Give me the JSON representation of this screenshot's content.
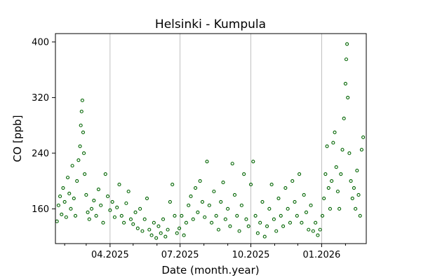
{
  "chart_data": {
    "type": "scatter",
    "title": "Helsinki - Kumpula",
    "xlabel": "Date (month.year)",
    "ylabel": "CO [ppb]",
    "xlim": [
      "2025-01-20",
      "2026-02-28"
    ],
    "ylim": [
      110,
      412
    ],
    "x_ticks": [
      {
        "date": "2025-04-01",
        "label": "04.2025"
      },
      {
        "date": "2025-07-01",
        "label": "07.2025"
      },
      {
        "date": "2025-10-01",
        "label": "10.2025"
      },
      {
        "date": "2026-01-01",
        "label": "01.2026"
      }
    ],
    "x_minor_ticks": [
      "2025-02-01",
      "2025-03-01",
      "2025-05-01",
      "2025-06-01",
      "2025-08-01",
      "2025-09-01",
      "2025-11-01",
      "2025-12-01",
      "2026-02-01"
    ],
    "y_ticks": [
      160,
      240,
      320,
      400
    ],
    "grid": "vertical at major x ticks",
    "marker_color": "#006400",
    "series": [
      {
        "points": [
          [
            "2025-01-22",
            142
          ],
          [
            "2025-01-24",
            165
          ],
          [
            "2025-01-26",
            178
          ],
          [
            "2025-01-28",
            152
          ],
          [
            "2025-01-30",
            190
          ],
          [
            "2025-02-01",
            170
          ],
          [
            "2025-02-03",
            148
          ],
          [
            "2025-02-05",
            205
          ],
          [
            "2025-02-07",
            182
          ],
          [
            "2025-02-09",
            160
          ],
          [
            "2025-02-11",
            222
          ],
          [
            "2025-02-13",
            175
          ],
          [
            "2025-02-15",
            150
          ],
          [
            "2025-02-17",
            200
          ],
          [
            "2025-02-19",
            230
          ],
          [
            "2025-02-21",
            250
          ],
          [
            "2025-02-22",
            280
          ],
          [
            "2025-02-23",
            300
          ],
          [
            "2025-02-24",
            316
          ],
          [
            "2025-02-25",
            270
          ],
          [
            "2025-02-26",
            240
          ],
          [
            "2025-02-27",
            210
          ],
          [
            "2025-03-01",
            180
          ],
          [
            "2025-03-03",
            155
          ],
          [
            "2025-03-05",
            145
          ],
          [
            "2025-03-08",
            160
          ],
          [
            "2025-03-11",
            172
          ],
          [
            "2025-03-14",
            150
          ],
          [
            "2025-03-17",
            188
          ],
          [
            "2025-03-20",
            165
          ],
          [
            "2025-03-23",
            140
          ],
          [
            "2025-03-26",
            210
          ],
          [
            "2025-03-29",
            178
          ],
          [
            "2025-04-01",
            158
          ],
          [
            "2025-04-04",
            170
          ],
          [
            "2025-04-07",
            148
          ],
          [
            "2025-04-10",
            162
          ],
          [
            "2025-04-13",
            195
          ],
          [
            "2025-04-16",
            150
          ],
          [
            "2025-04-19",
            140
          ],
          [
            "2025-04-22",
            168
          ],
          [
            "2025-04-25",
            185
          ],
          [
            "2025-04-28",
            145
          ],
          [
            "2025-05-01",
            138
          ],
          [
            "2025-05-04",
            155
          ],
          [
            "2025-05-07",
            132
          ],
          [
            "2025-05-10",
            160
          ],
          [
            "2025-05-13",
            128
          ],
          [
            "2025-05-16",
            145
          ],
          [
            "2025-05-19",
            175
          ],
          [
            "2025-05-22",
            130
          ],
          [
            "2025-05-25",
            122
          ],
          [
            "2025-05-28",
            140
          ],
          [
            "2025-05-31",
            118
          ],
          [
            "2025-06-03",
            135
          ],
          [
            "2025-06-06",
            125
          ],
          [
            "2025-06-09",
            145
          ],
          [
            "2025-06-12",
            120
          ],
          [
            "2025-06-15",
            130
          ],
          [
            "2025-06-18",
            170
          ],
          [
            "2025-06-21",
            195
          ],
          [
            "2025-06-24",
            150
          ],
          [
            "2025-06-27",
            125
          ],
          [
            "2025-06-30",
            132
          ],
          [
            "2025-07-03",
            150
          ],
          [
            "2025-07-06",
            122
          ],
          [
            "2025-07-09",
            140
          ],
          [
            "2025-07-12",
            165
          ],
          [
            "2025-07-15",
            178
          ],
          [
            "2025-07-18",
            145
          ],
          [
            "2025-07-21",
            190
          ],
          [
            "2025-07-24",
            155
          ],
          [
            "2025-07-27",
            200
          ],
          [
            "2025-07-30",
            170
          ],
          [
            "2025-08-02",
            148
          ],
          [
            "2025-08-05",
            228
          ],
          [
            "2025-08-08",
            165
          ],
          [
            "2025-08-11",
            140
          ],
          [
            "2025-08-14",
            185
          ],
          [
            "2025-08-17",
            150
          ],
          [
            "2025-08-20",
            130
          ],
          [
            "2025-08-23",
            170
          ],
          [
            "2025-08-26",
            198
          ],
          [
            "2025-08-29",
            145
          ],
          [
            "2025-09-01",
            160
          ],
          [
            "2025-09-04",
            135
          ],
          [
            "2025-09-07",
            225
          ],
          [
            "2025-09-10",
            180
          ],
          [
            "2025-09-13",
            150
          ],
          [
            "2025-09-16",
            128
          ],
          [
            "2025-09-19",
            165
          ],
          [
            "2025-09-22",
            210
          ],
          [
            "2025-09-25",
            145
          ],
          [
            "2025-09-28",
            135
          ],
          [
            "2025-10-01",
            195
          ],
          [
            "2025-10-04",
            228
          ],
          [
            "2025-10-07",
            150
          ],
          [
            "2025-10-10",
            125
          ],
          [
            "2025-10-13",
            140
          ],
          [
            "2025-10-16",
            170
          ],
          [
            "2025-10-19",
            120
          ],
          [
            "2025-10-22",
            135
          ],
          [
            "2025-10-25",
            160
          ],
          [
            "2025-10-28",
            195
          ],
          [
            "2025-10-31",
            145
          ],
          [
            "2025-11-03",
            128
          ],
          [
            "2025-11-06",
            175
          ],
          [
            "2025-11-09",
            150
          ],
          [
            "2025-11-12",
            135
          ],
          [
            "2025-11-15",
            190
          ],
          [
            "2025-11-18",
            160
          ],
          [
            "2025-11-21",
            140
          ],
          [
            "2025-11-24",
            200
          ],
          [
            "2025-11-27",
            170
          ],
          [
            "2025-11-30",
            150
          ],
          [
            "2025-12-03",
            210
          ],
          [
            "2025-12-06",
            140
          ],
          [
            "2025-12-09",
            180
          ],
          [
            "2025-12-12",
            155
          ],
          [
            "2025-12-15",
            130
          ],
          [
            "2025-12-18",
            165
          ],
          [
            "2025-12-21",
            128
          ],
          [
            "2025-12-24",
            140
          ],
          [
            "2025-12-27",
            122
          ],
          [
            "2025-12-30",
            130
          ],
          [
            "2026-01-02",
            150
          ],
          [
            "2026-01-04",
            175
          ],
          [
            "2026-01-06",
            210
          ],
          [
            "2026-01-08",
            250
          ],
          [
            "2026-01-10",
            190
          ],
          [
            "2026-01-12",
            160
          ],
          [
            "2026-01-14",
            200
          ],
          [
            "2026-01-16",
            255
          ],
          [
            "2026-01-18",
            270
          ],
          [
            "2026-01-20",
            220
          ],
          [
            "2026-01-22",
            185
          ],
          [
            "2026-01-24",
            160
          ],
          [
            "2026-01-26",
            210
          ],
          [
            "2026-01-28",
            245
          ],
          [
            "2026-01-30",
            290
          ],
          [
            "2026-02-01",
            340
          ],
          [
            "2026-02-02",
            375
          ],
          [
            "2026-02-03",
            397
          ],
          [
            "2026-02-04",
            320
          ],
          [
            "2026-02-06",
            240
          ],
          [
            "2026-02-08",
            200
          ],
          [
            "2026-02-10",
            175
          ],
          [
            "2026-02-12",
            190
          ],
          [
            "2026-02-14",
            160
          ],
          [
            "2026-02-16",
            215
          ],
          [
            "2026-02-18",
            180
          ],
          [
            "2026-02-20",
            150
          ],
          [
            "2026-02-22",
            245
          ],
          [
            "2026-02-24",
            263
          ]
        ]
      }
    ]
  }
}
